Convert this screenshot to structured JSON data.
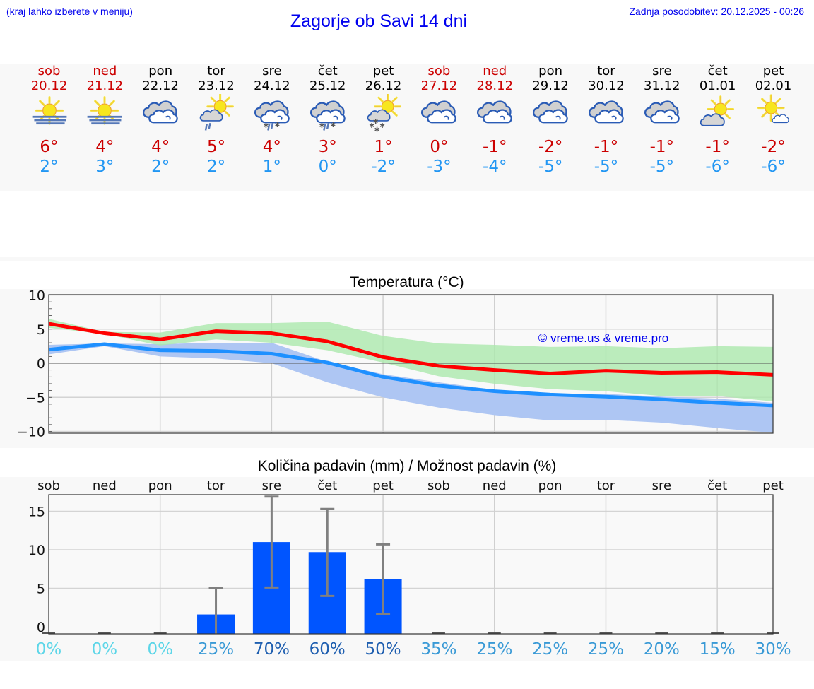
{
  "header": {
    "location_hint": "(kraj lahko izberete v meniju)",
    "title": "Zagorje ob Savi 14 dni",
    "last_update": "Zadnja posodobitev: 20.12.2025 - 00:26"
  },
  "days": [
    {
      "name": "sob",
      "date": "20.12",
      "weekend": true,
      "icon": "sun-fog-icon",
      "tmax": "6°",
      "tmin": "2°"
    },
    {
      "name": "ned",
      "date": "21.12",
      "weekend": true,
      "icon": "sun-fog-icon",
      "tmax": "4°",
      "tmin": "3°"
    },
    {
      "name": "pon",
      "date": "22.12",
      "weekend": false,
      "icon": "overcast-icon",
      "tmax": "4°",
      "tmin": "2°"
    },
    {
      "name": "tor",
      "date": "23.12",
      "weekend": false,
      "icon": "sun-cloud-rain-icon",
      "tmax": "5°",
      "tmin": "2°"
    },
    {
      "name": "sre",
      "date": "24.12",
      "weekend": false,
      "icon": "cloud-sleet-icon",
      "tmax": "4°",
      "tmin": "1°"
    },
    {
      "name": "čet",
      "date": "25.12",
      "weekend": false,
      "icon": "cloud-sleet-icon",
      "tmax": "3°",
      "tmin": "0°"
    },
    {
      "name": "pet",
      "date": "26.12",
      "weekend": false,
      "icon": "sun-cloud-snow-icon",
      "tmax": "1°",
      "tmin": "-2°"
    },
    {
      "name": "sob",
      "date": "27.12",
      "weekend": true,
      "icon": "overcast-icon",
      "tmax": "0°",
      "tmin": "-3°"
    },
    {
      "name": "ned",
      "date": "28.12",
      "weekend": true,
      "icon": "overcast-icon",
      "tmax": "-1°",
      "tmin": "-4°"
    },
    {
      "name": "pon",
      "date": "29.12",
      "weekend": false,
      "icon": "overcast-icon",
      "tmax": "-2°",
      "tmin": "-5°"
    },
    {
      "name": "tor",
      "date": "30.12",
      "weekend": false,
      "icon": "overcast-icon",
      "tmax": "-1°",
      "tmin": "-5°"
    },
    {
      "name": "sre",
      "date": "31.12",
      "weekend": false,
      "icon": "overcast-icon",
      "tmax": "-1°",
      "tmin": "-5°"
    },
    {
      "name": "čet",
      "date": "01.01",
      "weekend": false,
      "icon": "sun-cloud-icon",
      "tmax": "-1°",
      "tmin": "-6°"
    },
    {
      "name": "pet",
      "date": "02.01",
      "weekend": false,
      "icon": "sun-small-cloud-icon",
      "tmax": "-2°",
      "tmin": "-6°"
    }
  ],
  "colors": {
    "max_line": "#ff0000",
    "min_line": "#1e90ff",
    "max_band": "#abe9ad",
    "min_band": "#aec6f3",
    "overlap_band": "#7cc9a8",
    "bar": "#0055ff",
    "error_bar": "#808080",
    "weekend_text": "#cc0000",
    "tmin_text": "#2196f3",
    "link_blue": "#0000ee"
  },
  "chart_data": [
    {
      "type": "line",
      "title": "Temperatura (°C)",
      "xlabel": "",
      "ylabel": "",
      "ylim": [
        -10,
        10
      ],
      "yticks": [
        "10",
        "5",
        "0",
        "−5",
        "−10"
      ],
      "grid": true,
      "watermark": "© vreme.us & vreme.pro",
      "categories": [
        "20.12",
        "21.12",
        "22.12",
        "23.12",
        "24.12",
        "25.12",
        "26.12",
        "27.12",
        "28.12",
        "29.12",
        "30.12",
        "31.12",
        "01.01",
        "02.01"
      ],
      "series": [
        {
          "name": "max",
          "color": "#ff0000",
          "values": [
            5.8,
            4.4,
            3.5,
            4.7,
            4.4,
            3.2,
            0.9,
            -0.4,
            -1.0,
            -1.5,
            -1.1,
            -1.4,
            -1.3,
            -1.7
          ]
        },
        {
          "name": "min",
          "color": "#1e90ff",
          "values": [
            2.0,
            2.8,
            1.9,
            1.8,
            1.4,
            0.1,
            -2.0,
            -3.3,
            -4.1,
            -4.6,
            -4.9,
            -5.3,
            -5.8,
            -6.2
          ]
        },
        {
          "name": "max_range_high",
          "values": [
            6.5,
            4.6,
            4.5,
            5.9,
            5.9,
            6.1,
            4.0,
            2.9,
            2.7,
            2.4,
            2.5,
            2.2,
            2.5,
            2.4
          ]
        },
        {
          "name": "max_range_low",
          "values": [
            5.2,
            4.3,
            2.6,
            3.5,
            3.0,
            1.9,
            0.1,
            -1.9,
            -3.0,
            -3.8,
            -4.1,
            -4.8,
            -4.8,
            -5.6
          ]
        },
        {
          "name": "min_range_high",
          "values": [
            2.7,
            2.9,
            2.8,
            3.0,
            3.0,
            0.2,
            -1.6,
            -2.8,
            -3.9,
            -4.5,
            -4.5,
            -4.9,
            -5.2,
            -5.8
          ]
        },
        {
          "name": "min_range_low",
          "values": [
            1.3,
            2.5,
            1.0,
            0.7,
            0.0,
            -2.8,
            -5.0,
            -6.5,
            -7.6,
            -8.4,
            -8.3,
            -8.7,
            -9.5,
            -10.2
          ]
        }
      ]
    },
    {
      "type": "bar",
      "title": "Količina padavin (mm) / Možnost padavin (%)",
      "xlabel": "",
      "ylabel": "",
      "ylim": [
        -1,
        18
      ],
      "yticks": [
        "15",
        "10",
        "5",
        "0"
      ],
      "grid": true,
      "categories": [
        "sob",
        "ned",
        "pon",
        "tor",
        "sre",
        "čet",
        "pet",
        "sob",
        "ned",
        "pon",
        "tor",
        "sre",
        "čet",
        "pet"
      ],
      "values": [
        0,
        0,
        0,
        1.6,
        11.0,
        9.7,
        6.2,
        0,
        0,
        0,
        0,
        0,
        0,
        0
      ],
      "error_low": [
        0,
        0,
        0,
        0,
        5.1,
        4.0,
        1.7,
        0,
        0,
        0,
        0,
        0,
        0,
        0
      ],
      "error_high": [
        0,
        0,
        0,
        5.0,
        16.9,
        15.3,
        10.7,
        0,
        0,
        0,
        0,
        0,
        0,
        0
      ],
      "probability": [
        "0%",
        "0%",
        "0%",
        "25%",
        "70%",
        "60%",
        "50%",
        "35%",
        "25%",
        "25%",
        "25%",
        "20%",
        "15%",
        "30%"
      ],
      "probability_colors": [
        "#5dd6e8",
        "#5dd6e8",
        "#5dd6e8",
        "#3a9ad6",
        "#1f5fb0",
        "#1f5fb0",
        "#1f5fb0",
        "#3a9ad6",
        "#3a9ad6",
        "#3a9ad6",
        "#3a9ad6",
        "#3a9ad6",
        "#3a9ad6",
        "#3a9ad6"
      ]
    }
  ]
}
